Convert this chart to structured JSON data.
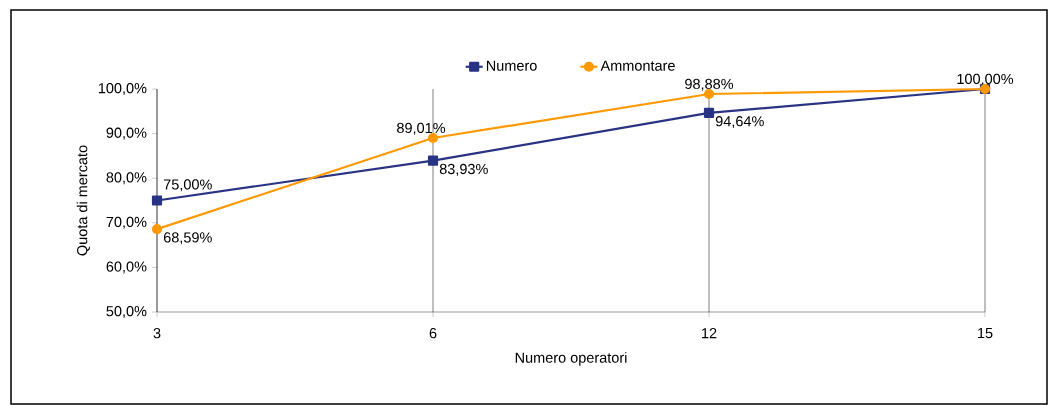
{
  "chart_data": {
    "type": "line",
    "xlabel": "Numero operatori",
    "ylabel": "Quota di mercato",
    "categories": [
      "3",
      "6",
      "12",
      "15"
    ],
    "series": [
      {
        "name": "Numero",
        "color": "#283383",
        "marker": "square",
        "values": [
          75.0,
          83.93,
          94.64,
          100.0
        ],
        "value_labels": [
          "75,00%",
          "83,93%",
          "94,64%",
          null
        ]
      },
      {
        "name": "Ammontare",
        "color": "#ff9900",
        "marker": "circle",
        "values": [
          68.59,
          89.01,
          98.88,
          100.0
        ],
        "value_labels": [
          "68,59%",
          "89,01%",
          "98,88%",
          "100,00%"
        ]
      }
    ],
    "ylim": [
      50,
      100
    ],
    "yticks": [
      {
        "value": 50,
        "label": "50,0%"
      },
      {
        "value": 60,
        "label": "60,0%"
      },
      {
        "value": 70,
        "label": "70,0%"
      },
      {
        "value": 80,
        "label": "80,0%"
      },
      {
        "value": 90,
        "label": "90,0%"
      },
      {
        "value": 100,
        "label": "100,0%"
      }
    ],
    "grid": "x",
    "legend": "top"
  }
}
